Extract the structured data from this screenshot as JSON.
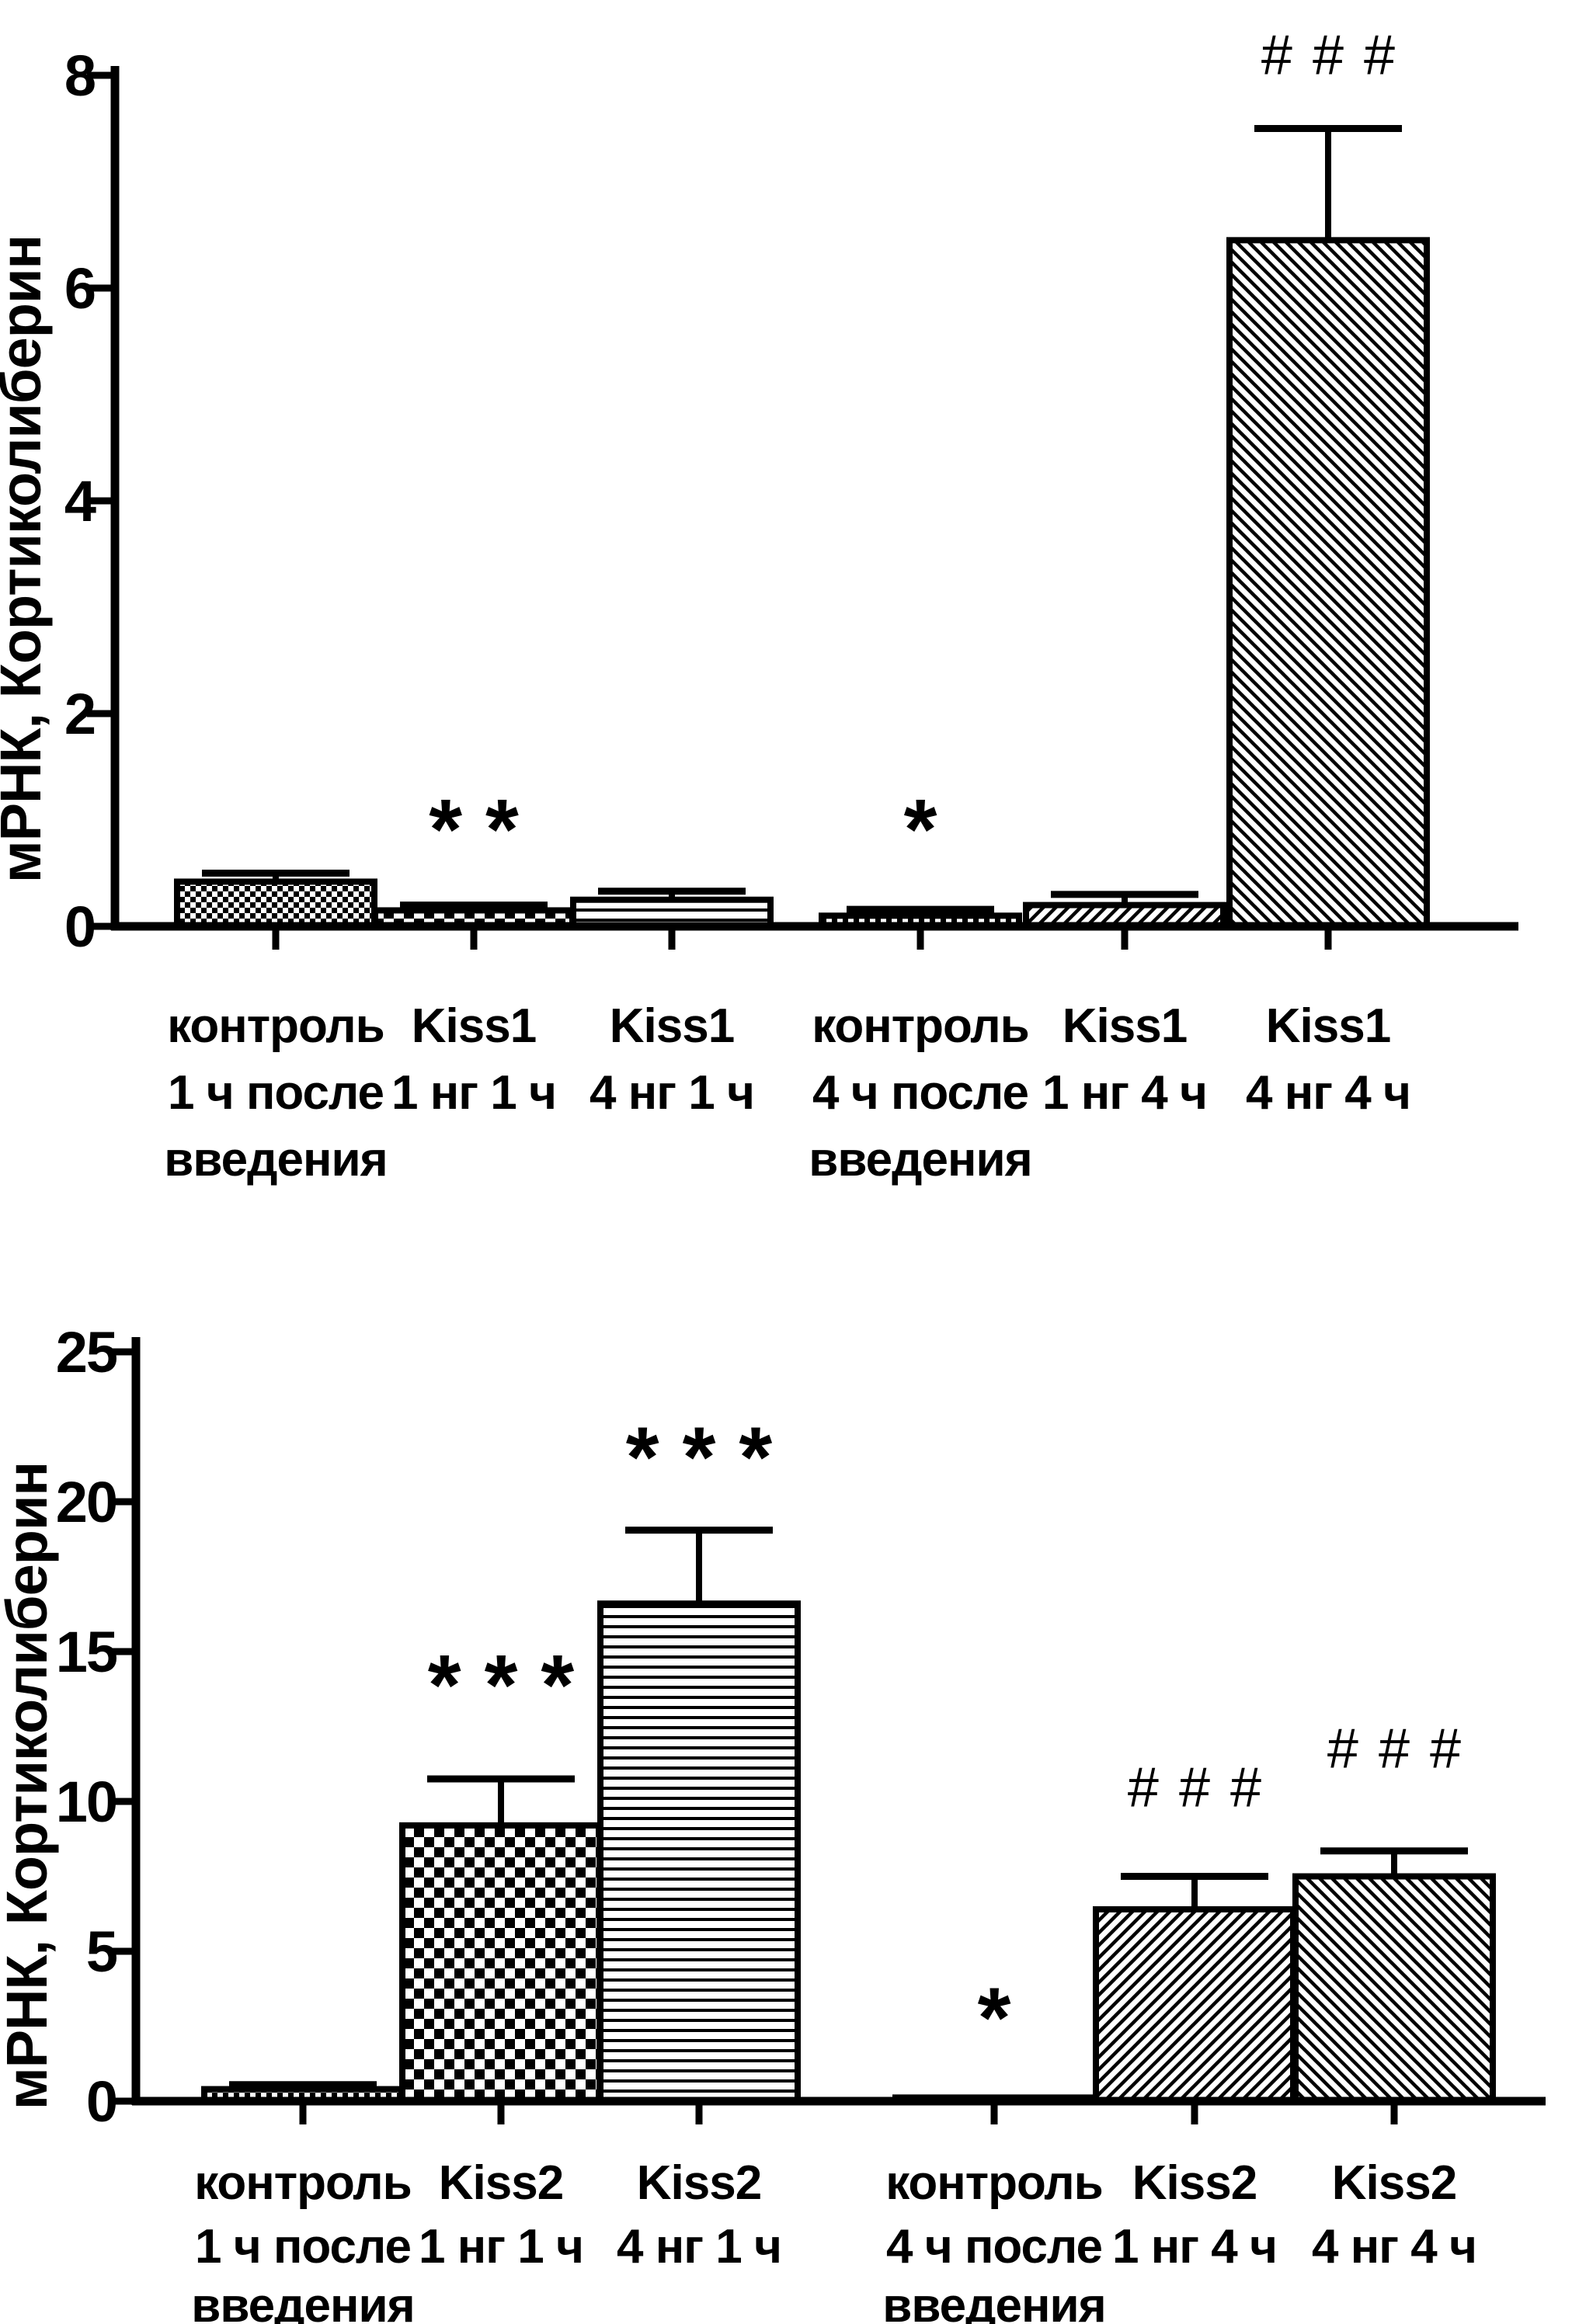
{
  "figure": {
    "background": "#ffffff",
    "ink": "#000000"
  },
  "chart_data": [
    {
      "type": "bar",
      "title": "",
      "ylabel": "мРНК, Кортиколиберин",
      "xlabel": "",
      "ylim": [
        0,
        8
      ],
      "yticks": [
        0,
        2,
        4,
        6,
        8
      ],
      "grid": false,
      "legend_position": null,
      "categories": [
        "контроль 1 ч после введения",
        "Kiss1 1 нг 1 ч",
        "Kiss1 4 нг 1 ч",
        "контроль 4 ч после введения",
        "Kiss1 1 нг 4 ч",
        "Kiss1 4 нг 4 ч"
      ],
      "category_label_lines": [
        [
          "контроль",
          "1 ч после",
          "введения"
        ],
        [
          "Kiss1",
          "1 нг 1 ч"
        ],
        [
          "Kiss1",
          "4 нг 1 ч"
        ],
        [
          "контроль",
          "4 ч после",
          "введения"
        ],
        [
          "Kiss1",
          "1 нг 4 ч"
        ],
        [
          "Kiss1",
          "4 нг 4 ч"
        ]
      ],
      "values": [
        0.42,
        0.15,
        0.25,
        0.1,
        0.2,
        6.45
      ],
      "errors_plus": [
        0.08,
        0.05,
        0.08,
        0.06,
        0.1,
        1.05
      ],
      "bar_patterns": [
        "fine-checkerboard",
        "coarse-checkerboard",
        "horizontal-lines",
        "fine-checkerboard",
        "diagonal-up",
        "diagonal-down"
      ],
      "significance": [
        {
          "bar_index": 1,
          "text": "**",
          "y": 1.0
        },
        {
          "bar_index": 3,
          "text": "*",
          "y": 1.0
        },
        {
          "bar_index": 5,
          "text": "###",
          "y": 8.2
        }
      ]
    },
    {
      "type": "bar",
      "title": "",
      "ylabel": "мРНК, Кортиколиберин",
      "xlabel": "",
      "ylim": [
        0,
        25
      ],
      "yticks": [
        0,
        5,
        10,
        15,
        20,
        25
      ],
      "grid": false,
      "legend_position": null,
      "categories": [
        "контроль 1 ч после введения",
        "Kiss2 1 нг 1 ч",
        "Kiss2 4 нг 1 ч",
        "контроль 4 ч после введения",
        "Kiss2 1 нг 4 ч",
        "Kiss2 4 нг 4 ч"
      ],
      "category_label_lines": [
        [
          "контроль",
          "1 ч после",
          "введения"
        ],
        [
          "Kiss2",
          "1 нг 1 ч"
        ],
        [
          "Kiss2",
          "4 нг 1 ч"
        ],
        [
          "контроль",
          "4 ч после",
          "введения"
        ],
        [
          "Kiss2",
          "1 нг 4 ч"
        ],
        [
          "Kiss2",
          "4 нг 4 ч"
        ]
      ],
      "values": [
        0.4,
        9.2,
        16.6,
        0.12,
        6.4,
        7.5
      ],
      "errors_plus": [
        0.15,
        1.55,
        2.45,
        0,
        1.1,
        0.85
      ],
      "bar_patterns": [
        "fine-checkerboard",
        "coarse-checkerboard",
        "horizontal-lines",
        "fine-checkerboard",
        "diagonal-up",
        "diagonal-down"
      ],
      "significance": [
        {
          "bar_index": 1,
          "text": "***",
          "y": 14.2
        },
        {
          "bar_index": 2,
          "text": "***",
          "y": 21.8
        },
        {
          "bar_index": 3,
          "text": "*",
          "y": 3.1
        },
        {
          "bar_index": 4,
          "text": "###",
          "y": 10.5
        },
        {
          "bar_index": 5,
          "text": "###",
          "y": 11.8
        }
      ]
    }
  ]
}
